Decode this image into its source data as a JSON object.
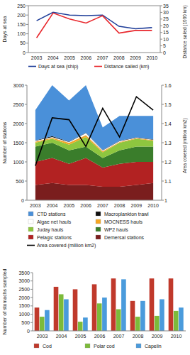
{
  "chart_data": [
    {
      "type": "line",
      "categories": [
        "2003",
        "2004",
        "2005",
        "2006",
        "2007",
        "2008",
        "2009",
        "2010"
      ],
      "y_label": "Days at sea",
      "y2_label": "Distance sailed (1000 km)",
      "ylim": [
        0,
        250
      ],
      "yticks": [
        0,
        50,
        100,
        150,
        200,
        250
      ],
      "y2lim": [
        0,
        35
      ],
      "y2ticks": [
        0,
        5,
        10,
        15,
        20,
        25,
        30,
        35
      ],
      "grid": false,
      "legend": "bottom",
      "series": [
        {
          "name": "Days at sea (ship)",
          "color": "#1f3e99",
          "values": [
            170,
            215,
            200,
            197,
            200,
            140,
            127,
            133
          ]
        },
        {
          "name": "Distance sailed (km)",
          "color": "#e8262b",
          "axis": "y2",
          "values": [
            11,
            29.5,
            25,
            22,
            27.5,
            14.5,
            16.5,
            16.5
          ]
        }
      ]
    },
    {
      "type": "area",
      "stacked": true,
      "categories": [
        "2003",
        "2004",
        "2005",
        "2006",
        "2007",
        "2008",
        "2009",
        "2010"
      ],
      "y_label": "Number of stations",
      "y2_label": "Area covered (million km2)",
      "ylim": [
        0,
        3000
      ],
      "yticks": [
        0,
        500,
        1000,
        1500,
        2000,
        2500,
        3000
      ],
      "y2lim": [
        1,
        1.6
      ],
      "y2ticks": [
        1,
        1.1,
        1.2,
        1.3,
        1.4,
        1.5,
        1.6
      ],
      "grid": false,
      "legend": "bottom",
      "series": [
        {
          "name": "CTD stations",
          "color": "#4a90d9",
          "values": [
            790,
            1330,
            1070,
            1240,
            590,
            650,
            560,
            610
          ]
        },
        {
          "name": "Macroplankton trawl",
          "color": "#111111",
          "values": [
            10,
            20,
            10,
            10,
            10,
            10,
            10,
            10
          ]
        },
        {
          "name": "Algae net hauls",
          "color": "#ffffff",
          "values": [
            20,
            20,
            20,
            50,
            20,
            20,
            10,
            10
          ]
        },
        {
          "name": "MOCNESS hauls",
          "color": "#f5a623",
          "values": [
            30,
            30,
            50,
            50,
            30,
            20,
            20,
            20
          ]
        },
        {
          "name": "Juday hauls",
          "color": "#8ec63f",
          "values": [
            100,
            100,
            150,
            250,
            150,
            200,
            200,
            150
          ]
        },
        {
          "name": "WP2 hauls",
          "color": "#3a7d2b",
          "values": [
            400,
            400,
            350,
            300,
            250,
            350,
            400,
            400
          ]
        },
        {
          "name": "Pelagic stations",
          "color": "#b22222",
          "values": [
            600,
            650,
            550,
            700,
            500,
            600,
            600,
            550
          ]
        },
        {
          "name": "Demersal stations",
          "color": "#7a1e1e",
          "values": [
            400,
            450,
            400,
            400,
            350,
            350,
            400,
            450
          ]
        },
        {
          "name": "Area covered (million km2)",
          "color": "#000000",
          "type": "line",
          "axis": "y2",
          "values": [
            1.18,
            1.43,
            1.42,
            1.28,
            1.48,
            1.33,
            1.54,
            1.47
          ]
        }
      ]
    },
    {
      "type": "bar",
      "categories": [
        "2003",
        "2004",
        "2005",
        "2006",
        "2007",
        "2008",
        "2009",
        "2010"
      ],
      "y_label": "Number of stomachs sampled",
      "ylim": [
        0,
        3500
      ],
      "yticks": [
        0,
        500,
        1000,
        1500,
        2000,
        2500,
        3000,
        3500
      ],
      "grid": false,
      "legend": "bottom",
      "series": [
        {
          "name": "Cod",
          "color": "#c0392b",
          "values": [
            1400,
            2650,
            2500,
            2800,
            3150,
            1800,
            3150,
            3150
          ]
        },
        {
          "name": "Polar cod",
          "color": "#7cbb3a",
          "values": [
            850,
            2200,
            550,
            1650,
            1300,
            850,
            900,
            1200
          ]
        },
        {
          "name": "Capelin",
          "color": "#4a9bdc",
          "values": [
            1250,
            1900,
            800,
            2000,
            3100,
            1800,
            1900,
            1400
          ]
        }
      ]
    }
  ]
}
